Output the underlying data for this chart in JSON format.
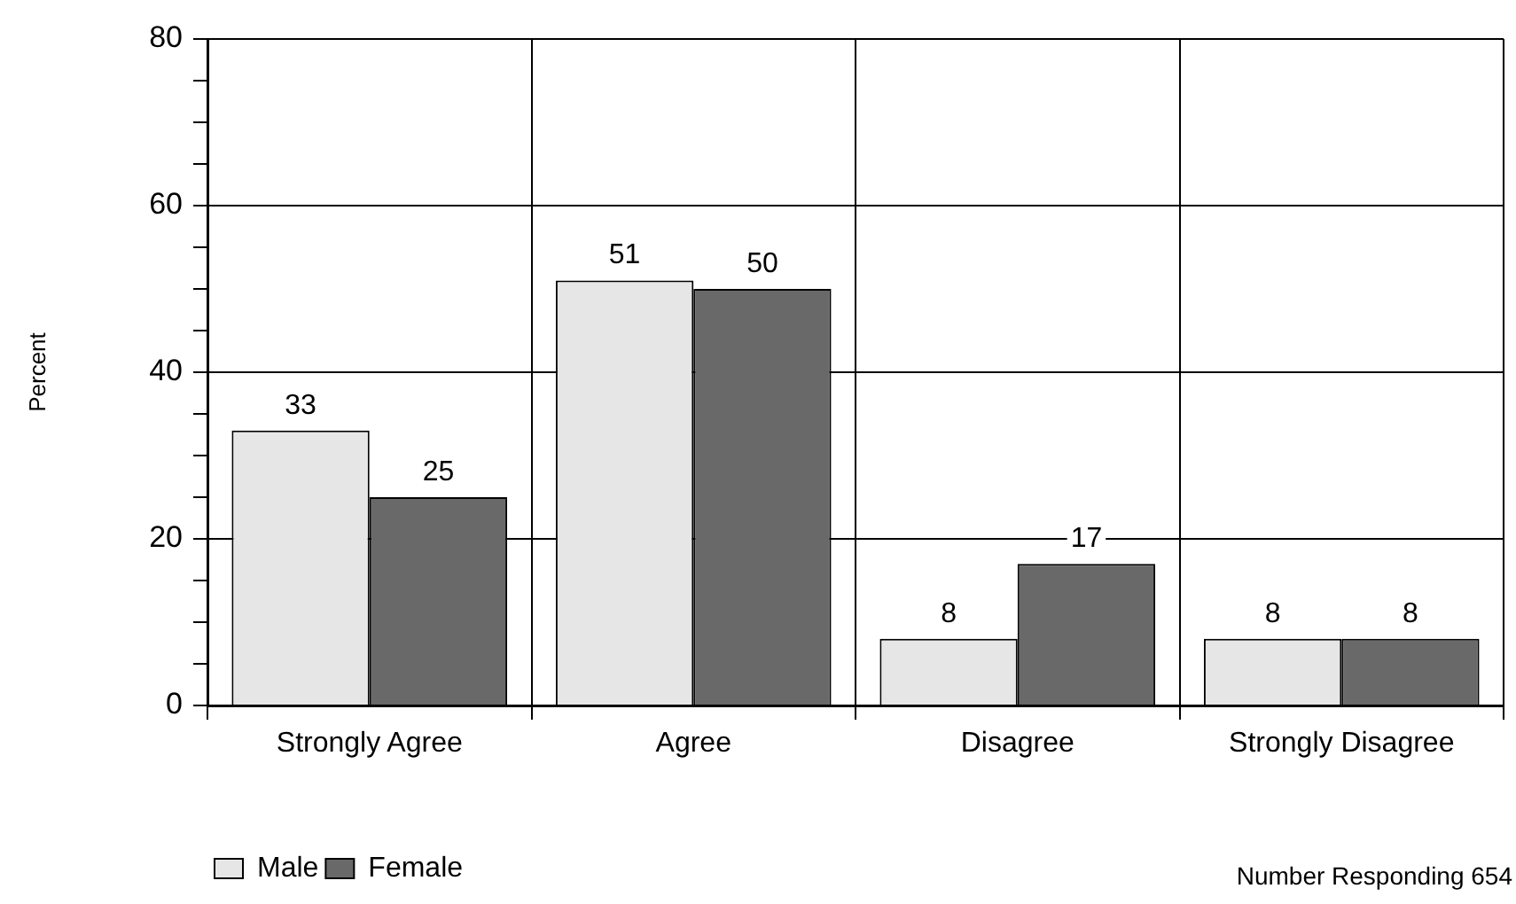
{
  "chart_data": {
    "type": "bar",
    "ylabel": "Percent",
    "categories": [
      "Strongly Agree",
      "Agree",
      "Disagree",
      "Strongly Disagree"
    ],
    "series": [
      {
        "name": "Male",
        "color": "#e6e6e6",
        "values": [
          33,
          51,
          8,
          8
        ]
      },
      {
        "name": "Female",
        "color": "#696969",
        "values": [
          25,
          50,
          17,
          8
        ]
      }
    ],
    "ylim": [
      0,
      80
    ],
    "yticks": [
      0,
      {
        "value": 5,
        "label": null
      },
      {
        "value": 10,
        "label": null
      },
      {
        "value": 15,
        "label": null
      },
      20,
      {
        "value": 25,
        "label": null
      },
      {
        "value": 30,
        "label": null
      },
      {
        "value": 35,
        "label": null
      },
      40,
      {
        "value": 45,
        "label": null
      },
      {
        "value": 50,
        "label": null
      },
      {
        "value": 55,
        "label": null
      },
      60,
      {
        "value": 65,
        "label": null
      },
      {
        "value": 70,
        "label": null
      },
      {
        "value": 75,
        "label": null
      },
      80
    ],
    "grid": true,
    "legend": "bottom left",
    "data_labels": true,
    "annotations": [
      "Number Responding 654"
    ]
  }
}
